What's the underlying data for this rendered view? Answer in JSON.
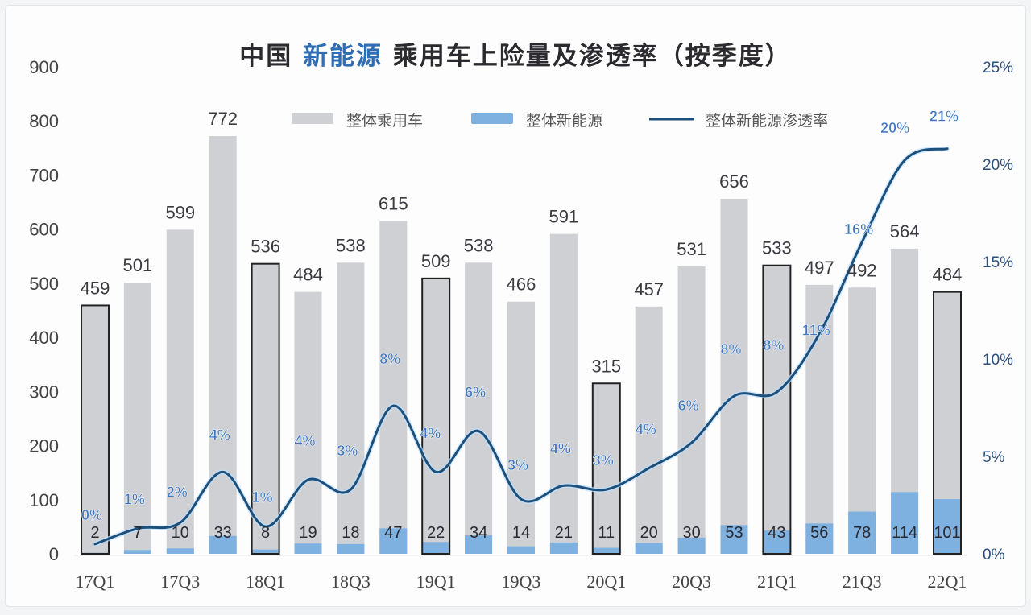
{
  "chart_data": {
    "type": "bar",
    "title": {
      "prefix": "中国 ",
      "accent": "新能源",
      "suffix": " 乘用车上险量及渗透率（按季度）"
    },
    "xlabel": "",
    "ylabel": "",
    "y_left": {
      "ticks": [
        "0",
        "100",
        "200",
        "300",
        "400",
        "500",
        "600",
        "700",
        "800",
        "900"
      ],
      "range": [
        0,
        900
      ]
    },
    "y_right": {
      "ticks": [
        "0%",
        "5%",
        "10%",
        "15%",
        "20%",
        "25%"
      ],
      "range": [
        0,
        25
      ]
    },
    "x_tick_labels": [
      "17Q1",
      "17Q3",
      "18Q1",
      "18Q3",
      "19Q1",
      "19Q3",
      "20Q1",
      "20Q3",
      "21Q1",
      "21Q3",
      "22Q1"
    ],
    "categories": [
      "17Q1",
      "17Q2",
      "17Q3",
      "17Q4",
      "18Q1",
      "18Q2",
      "18Q3",
      "18Q4",
      "19Q1",
      "19Q2",
      "19Q3",
      "19Q4",
      "20Q1",
      "20Q2",
      "20Q3",
      "20Q4",
      "21Q1",
      "21Q2",
      "21Q3",
      "21Q4",
      "22Q1"
    ],
    "highlighted_categories": [
      "17Q1",
      "18Q1",
      "19Q1",
      "20Q1",
      "21Q1",
      "22Q1"
    ],
    "legend": {
      "position": "top-center",
      "entries": [
        "整体乘用车",
        "整体新能源",
        "整体新能源渗透率"
      ]
    },
    "colors": {
      "total": "#cfd0d3",
      "nev": "#7fb1e0",
      "line": "#1c4f7a",
      "pct_label": "#3f78c0",
      "title_accent": "#2f6db5"
    },
    "series": [
      {
        "name": "整体乘用车",
        "type": "bar",
        "axis": "left",
        "values": [
          459,
          501,
          599,
          772,
          536,
          484,
          538,
          615,
          509,
          538,
          466,
          591,
          315,
          457,
          531,
          656,
          533,
          497,
          492,
          564,
          484
        ]
      },
      {
        "name": "整体新能源",
        "type": "bar",
        "axis": "left",
        "values": [
          2,
          7,
          10,
          33,
          8,
          19,
          18,
          47,
          22,
          34,
          14,
          21,
          11,
          20,
          30,
          53,
          43,
          56,
          78,
          114,
          101
        ]
      },
      {
        "name": "整体新能源渗透率",
        "type": "line",
        "axis": "right",
        "unit": "%",
        "labels": [
          "0%",
          "1%",
          "2%",
          "4%",
          "1%",
          "4%",
          "3%",
          "8%",
          "4%",
          "6%",
          "3%",
          "4%",
          "3%",
          "4%",
          "6%",
          "8%",
          "8%",
          "11%",
          "16%",
          "20%",
          "21%"
        ],
        "values": [
          0.5,
          1.3,
          1.6,
          4.2,
          1.4,
          3.8,
          3.3,
          7.6,
          4.2,
          6.3,
          2.8,
          3.5,
          3.3,
          4.4,
          5.7,
          8.1,
          8.3,
          11.3,
          16.0,
          20.2,
          20.8
        ]
      }
    ]
  }
}
